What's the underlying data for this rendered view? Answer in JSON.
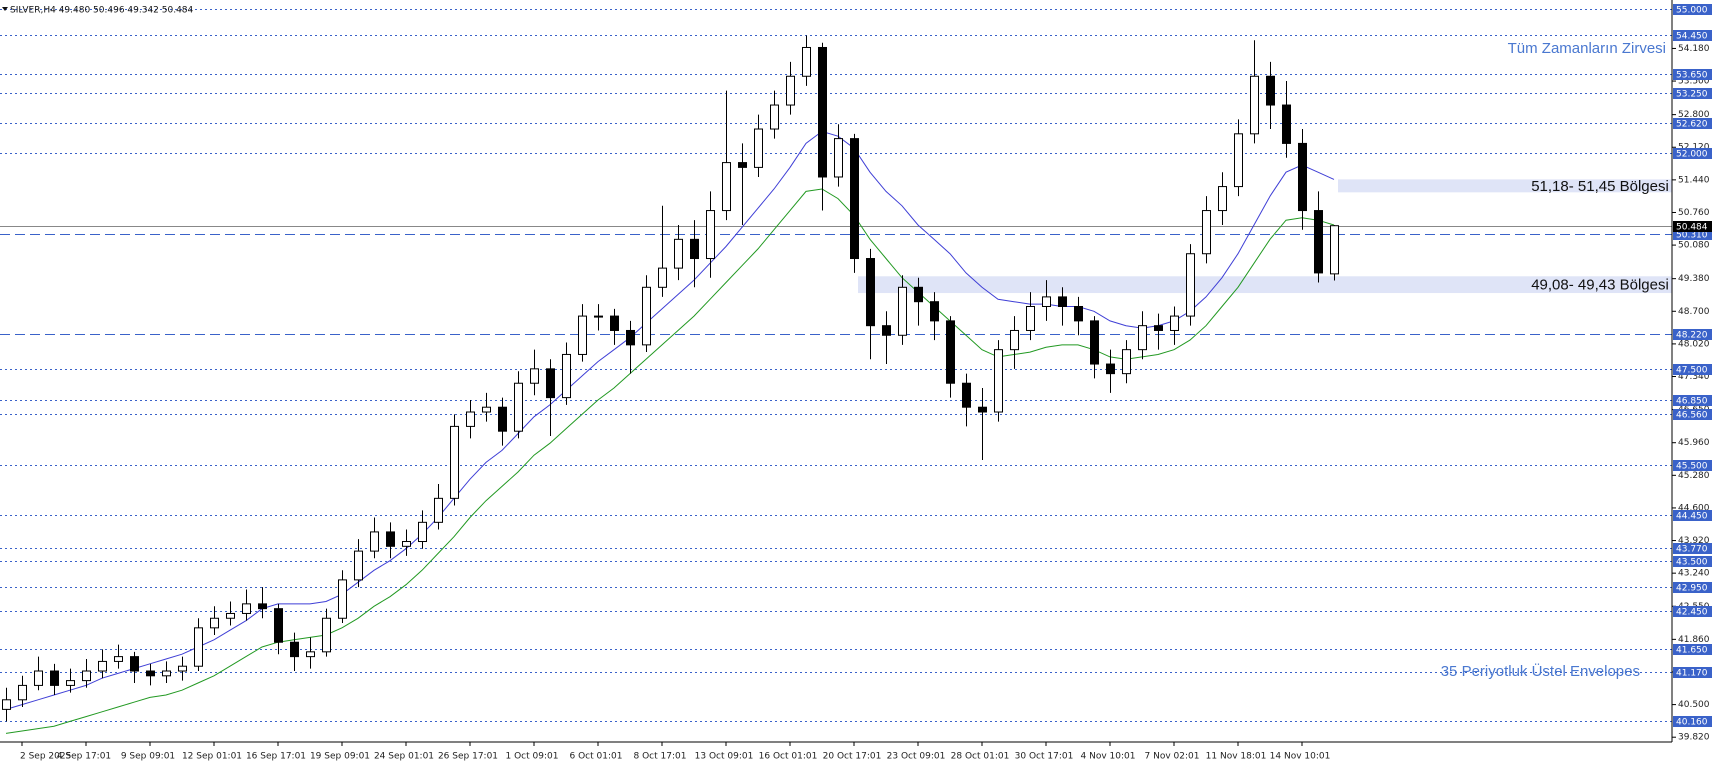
{
  "chart_data": {
    "type": "candlestick",
    "title": "SILVER,H4 49.480 50.496 49.342 50.484",
    "categories": [
      null,
      "2 Sep 2025",
      null,
      null,
      null,
      "4 Sep 17:01",
      null,
      null,
      null,
      "9 Sep 09:01",
      null,
      null,
      null,
      "12 Sep 01:01",
      null,
      null,
      null,
      "16 Sep 17:01",
      null,
      null,
      null,
      "19 Sep 09:01",
      null,
      null,
      null,
      "24 Sep 01:01",
      null,
      null,
      null,
      "26 Sep 17:01",
      null,
      null,
      null,
      "1 Oct 09:01",
      null,
      null,
      null,
      "6 Oct 01:01",
      null,
      null,
      null,
      "8 Oct 17:01",
      null,
      null,
      null,
      "13 Oct 09:01",
      null,
      null,
      null,
      "16 Oct 01:01",
      null,
      null,
      null,
      "20 Oct 17:01",
      null,
      null,
      null,
      "23 Oct 09:01",
      null,
      null,
      null,
      "28 Oct 01:01",
      null,
      null,
      null,
      "30 Oct 17:01",
      null,
      null,
      null,
      "4 Nov 10:01",
      null,
      null,
      null,
      "7 Nov 02:01",
      null,
      null,
      null,
      "11 Nov 18:01",
      null,
      null,
      null,
      "14 Nov 10:01",
      null,
      null
    ],
    "open": [
      40.4,
      40.6,
      40.9,
      41.2,
      40.9,
      41.0,
      41.2,
      41.4,
      41.5,
      41.2,
      41.1,
      41.2,
      41.3,
      42.1,
      42.3,
      42.4,
      42.6,
      42.5,
      41.8,
      41.5,
      41.6,
      42.3,
      43.1,
      43.7,
      44.1,
      43.8,
      43.9,
      44.3,
      44.8,
      46.3,
      46.6,
      46.7,
      46.2,
      47.2,
      47.5,
      46.9,
      47.8,
      48.6,
      48.6,
      48.3,
      48.0,
      49.2,
      49.6,
      50.2,
      49.8,
      50.8,
      51.8,
      51.7,
      52.5,
      53.0,
      53.6,
      54.2,
      51.5,
      52.3,
      49.8,
      48.4,
      48.2,
      49.2,
      48.9,
      48.5,
      47.2,
      46.7,
      46.6,
      47.9,
      48.3,
      48.8,
      49.0,
      48.8,
      48.5,
      47.6,
      47.4,
      47.9,
      48.4,
      48.3,
      48.6,
      49.9,
      50.8,
      51.3,
      52.4,
      53.6,
      53.0,
      52.2,
      50.8,
      49.48
    ],
    "high": [
      40.85,
      41.1,
      41.5,
      41.35,
      41.25,
      41.45,
      41.65,
      41.75,
      41.6,
      41.35,
      41.4,
      41.5,
      42.3,
      42.55,
      42.65,
      42.9,
      42.95,
      42.6,
      42.0,
      41.9,
      42.5,
      43.3,
      43.95,
      44.4,
      44.3,
      44.15,
      44.55,
      45.1,
      46.55,
      46.85,
      47.0,
      46.9,
      47.45,
      47.9,
      47.7,
      48.05,
      48.85,
      48.85,
      48.75,
      48.5,
      49.45,
      50.9,
      50.5,
      50.6,
      51.2,
      53.3,
      52.2,
      52.8,
      53.3,
      53.9,
      54.45,
      54.3,
      52.6,
      52.4,
      50.0,
      48.7,
      49.45,
      49.4,
      49.1,
      48.6,
      47.4,
      47.1,
      48.1,
      48.6,
      49.1,
      49.35,
      49.2,
      49.0,
      48.6,
      47.9,
      48.1,
      48.7,
      48.65,
      48.8,
      50.1,
      51.1,
      51.6,
      52.7,
      54.35,
      53.9,
      53.5,
      52.5,
      51.2,
      50.496
    ],
    "low": [
      40.15,
      40.45,
      40.8,
      40.7,
      40.75,
      40.85,
      41.05,
      41.25,
      40.95,
      40.9,
      40.95,
      41.0,
      41.2,
      41.95,
      42.15,
      42.25,
      42.3,
      41.55,
      41.2,
      41.25,
      41.5,
      42.2,
      42.95,
      43.55,
      43.55,
      43.6,
      43.75,
      44.15,
      44.65,
      46.05,
      46.4,
      45.9,
      46.05,
      46.95,
      46.1,
      46.75,
      47.65,
      48.3,
      48.0,
      47.4,
      47.85,
      49.0,
      49.35,
      49.2,
      49.4,
      50.6,
      50.5,
      51.5,
      52.3,
      52.8,
      53.4,
      50.8,
      51.3,
      49.5,
      47.7,
      47.6,
      48.0,
      48.4,
      48.1,
      46.9,
      46.3,
      45.6,
      46.4,
      47.5,
      48.1,
      48.5,
      48.4,
      48.2,
      47.3,
      47.0,
      47.2,
      47.7,
      47.9,
      48.0,
      48.4,
      49.7,
      50.5,
      51.1,
      52.2,
      52.5,
      51.9,
      50.4,
      49.3,
      49.342
    ],
    "close": [
      40.6,
      40.9,
      41.2,
      40.9,
      41.0,
      41.2,
      41.4,
      41.5,
      41.2,
      41.1,
      41.2,
      41.3,
      42.1,
      42.3,
      42.4,
      42.6,
      42.5,
      41.8,
      41.5,
      41.6,
      42.3,
      43.1,
      43.7,
      44.1,
      43.8,
      43.9,
      44.3,
      44.8,
      46.3,
      46.6,
      46.7,
      46.2,
      47.2,
      47.5,
      46.9,
      47.8,
      48.6,
      48.6,
      48.3,
      48.0,
      49.2,
      49.6,
      50.2,
      49.8,
      50.8,
      51.8,
      51.7,
      52.5,
      53.0,
      53.6,
      54.2,
      51.5,
      52.3,
      49.8,
      48.4,
      48.2,
      49.2,
      48.9,
      48.5,
      47.2,
      46.7,
      46.6,
      47.9,
      48.3,
      48.8,
      49.0,
      48.8,
      48.5,
      47.6,
      47.4,
      47.9,
      48.4,
      48.3,
      48.6,
      49.9,
      50.8,
      51.3,
      52.4,
      53.6,
      53.0,
      52.2,
      50.8,
      49.5,
      50.484
    ],
    "envelopes": [
      {
        "color": "#3f3fd6",
        "values": [
          40.4,
          40.5,
          40.6,
          40.7,
          40.8,
          40.9,
          41.05,
          41.15,
          41.25,
          41.35,
          41.45,
          41.55,
          41.7,
          41.85,
          42.05,
          42.25,
          42.5,
          42.6,
          42.6,
          42.6,
          42.65,
          42.8,
          43.05,
          43.3,
          43.5,
          43.75,
          44.05,
          44.4,
          44.8,
          45.2,
          45.55,
          45.8,
          46.15,
          46.5,
          46.75,
          47.05,
          47.35,
          47.65,
          47.9,
          48.15,
          48.45,
          48.75,
          49.05,
          49.35,
          49.7,
          50.05,
          50.45,
          50.85,
          51.25,
          51.7,
          52.2,
          52.45,
          52.35,
          52.1,
          51.6,
          51.2,
          50.9,
          50.5,
          50.2,
          49.9,
          49.5,
          49.2,
          48.95,
          48.9,
          48.85,
          48.85,
          48.8,
          48.8,
          48.7,
          48.5,
          48.4,
          48.35,
          48.4,
          48.5,
          48.7,
          49.0,
          49.4,
          49.9,
          50.5,
          51.1,
          51.6,
          51.75,
          51.6,
          51.45
        ]
      },
      {
        "color": "#229922",
        "values": [
          39.9,
          39.95,
          40.0,
          40.05,
          40.15,
          40.25,
          40.35,
          40.45,
          40.55,
          40.65,
          40.7,
          40.8,
          40.95,
          41.1,
          41.3,
          41.5,
          41.7,
          41.8,
          41.85,
          41.9,
          41.95,
          42.1,
          42.3,
          42.55,
          42.75,
          43.0,
          43.3,
          43.65,
          44.0,
          44.4,
          44.75,
          45.05,
          45.35,
          45.7,
          45.95,
          46.25,
          46.55,
          46.85,
          47.1,
          47.4,
          47.7,
          48.0,
          48.3,
          48.6,
          48.95,
          49.3,
          49.65,
          50.0,
          50.4,
          50.8,
          51.2,
          51.25,
          51.05,
          50.7,
          50.2,
          49.8,
          49.4,
          49.1,
          48.8,
          48.5,
          48.2,
          47.9,
          47.75,
          47.8,
          47.85,
          47.95,
          48.0,
          48.0,
          47.9,
          47.75,
          47.7,
          47.75,
          47.8,
          47.9,
          48.1,
          48.4,
          48.8,
          49.2,
          49.7,
          50.2,
          50.6,
          50.65,
          50.6,
          50.5
        ]
      }
    ],
    "ylim": [
      39.72,
      55.19
    ],
    "yticks": [
      {
        "value": 54.18,
        "label": "54.180"
      },
      {
        "value": 53.5,
        "label": "53.500"
      },
      {
        "value": 52.8,
        "label": "52.800"
      },
      {
        "value": 52.12,
        "label": "52.120"
      },
      {
        "value": 51.44,
        "label": "51.440"
      },
      {
        "value": 50.76,
        "label": "50.760"
      },
      {
        "value": 50.08,
        "label": "50.080"
      },
      {
        "value": 49.38,
        "label": "49.380"
      },
      {
        "value": 48.7,
        "label": "48.700"
      },
      {
        "value": 48.02,
        "label": "48.020"
      },
      {
        "value": 47.34,
        "label": "47.340"
      },
      {
        "value": 46.65,
        "label": "46.650"
      },
      {
        "value": 45.96,
        "label": "45.960"
      },
      {
        "value": 45.28,
        "label": "45.280"
      },
      {
        "value": 44.6,
        "label": "44.600"
      },
      {
        "value": 43.92,
        "label": "43.920"
      },
      {
        "value": 43.24,
        "label": "43.240"
      },
      {
        "value": 42.55,
        "label": "42.550"
      },
      {
        "value": 41.86,
        "label": "41.860"
      },
      {
        "value": 41.18,
        "label": "41.180"
      },
      {
        "value": 40.5,
        "label": "40.500"
      },
      {
        "value": 39.82,
        "label": "39.820"
      }
    ],
    "level_color": "#3a62c9",
    "levels": [
      {
        "value": 55.0,
        "label": "55.000",
        "style": "dot"
      },
      {
        "value": 54.45,
        "label": "54.450",
        "style": "dot"
      },
      {
        "value": 53.65,
        "label": "53.650",
        "style": "dot"
      },
      {
        "value": 53.25,
        "label": "53.250",
        "style": "dot"
      },
      {
        "value": 52.62,
        "label": "52.620",
        "style": "dot"
      },
      {
        "value": 52.0,
        "label": "52.000",
        "style": "dot"
      },
      {
        "value": 50.31,
        "label": "50.310",
        "style": "dash"
      },
      {
        "value": 48.22,
        "label": "48.220",
        "style": "dash"
      },
      {
        "value": 47.5,
        "label": "47.500",
        "style": "dot"
      },
      {
        "value": 46.85,
        "label": "46.850",
        "style": "dot"
      },
      {
        "value": 46.56,
        "label": "46.560",
        "style": "dot"
      },
      {
        "value": 45.5,
        "label": "45.500",
        "style": "dot"
      },
      {
        "value": 44.45,
        "label": "44.450",
        "style": "dot"
      },
      {
        "value": 43.77,
        "label": "43.770",
        "style": "dot"
      },
      {
        "value": 43.5,
        "label": "43.500",
        "style": "dot"
      },
      {
        "value": 42.95,
        "label": "42.950",
        "style": "dot"
      },
      {
        "value": 42.45,
        "label": "42.450",
        "style": "dot"
      },
      {
        "value": 41.65,
        "label": "41.650",
        "style": "dot"
      },
      {
        "value": 41.17,
        "label": "41.170",
        "style": "dot"
      },
      {
        "value": 40.16,
        "label": "40.160",
        "style": "dot"
      }
    ],
    "current_price": {
      "value": 50.484,
      "label": "50.484"
    },
    "zones": [
      {
        "range": [
          51.18,
          51.45
        ],
        "from_index": 83,
        "label": "51,18- 51,45 Bölgesi"
      },
      {
        "range": [
          49.08,
          49.43
        ],
        "from_index": 53,
        "label": "49,08- 49,43 Bölgesi"
      }
    ],
    "annotations": [
      "Tüm Zamanların Zirvesi",
      "35 Periyotluk Üstel Envelopes"
    ]
  }
}
